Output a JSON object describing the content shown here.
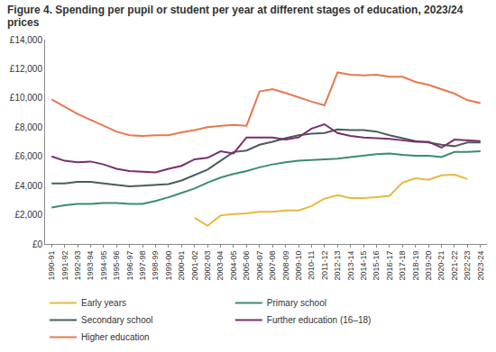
{
  "chart_data": {
    "type": "line",
    "title": "Figure 4. Spending per pupil or student per year at different stages of education, 2023/24 prices",
    "categories": [
      "1990-91",
      "1991-92",
      "1992-93",
      "1993-94",
      "1994-95",
      "1995-96",
      "1996-97",
      "1997-98",
      "1998-99",
      "1999-00",
      "2000-01",
      "2001-02",
      "2002-03",
      "2003-04",
      "2004-05",
      "2005-06",
      "2006-07",
      "2007-08",
      "2008-09",
      "2009-10",
      "2010-11",
      "2011-12",
      "2012-13",
      "2013-14",
      "2014-15",
      "2015-16",
      "2016-17",
      "2017-18",
      "2018-19",
      "2019-20",
      "2020-21",
      "2021-22",
      "2022-23",
      "2023-24"
    ],
    "series": [
      {
        "name": "Early years",
        "color": "#e8b940",
        "values": [
          null,
          null,
          null,
          null,
          null,
          null,
          null,
          null,
          null,
          null,
          null,
          1800,
          1250,
          1950,
          2050,
          2100,
          2200,
          2200,
          2300,
          2300,
          2600,
          3100,
          3350,
          3150,
          3150,
          3200,
          3300,
          4200,
          4500,
          4400,
          4700,
          4750,
          4450,
          null
        ]
      },
      {
        "name": "Primary school",
        "color": "#3b8c6e",
        "values": [
          2500,
          2650,
          2750,
          2750,
          2800,
          2800,
          2750,
          2750,
          2950,
          3200,
          3500,
          3800,
          4200,
          4550,
          4800,
          5000,
          5250,
          5450,
          5600,
          5700,
          5750,
          5800,
          5850,
          5950,
          6050,
          6150,
          6200,
          6100,
          6050,
          6050,
          5950,
          6300,
          6300,
          6350
        ]
      },
      {
        "name": "Secondary school",
        "color": "#4a5c5c",
        "values": [
          4150,
          4150,
          4250,
          4250,
          4150,
          4050,
          3950,
          4000,
          4050,
          4100,
          4350,
          4700,
          5100,
          5700,
          6300,
          6400,
          6800,
          7000,
          7250,
          7450,
          7550,
          7600,
          7850,
          7800,
          7800,
          7700,
          7450,
          7250,
          7050,
          6950,
          6800,
          6700,
          6950,
          6950
        ]
      },
      {
        "name": "Further education (16–18)",
        "color": "#7b2d6f",
        "values": [
          6000,
          5700,
          5600,
          5650,
          5450,
          5150,
          5000,
          4950,
          4900,
          5150,
          5350,
          5800,
          5900,
          6350,
          6200,
          7300,
          7300,
          7300,
          7150,
          7300,
          7900,
          8200,
          7600,
          7400,
          7300,
          7250,
          7200,
          7100,
          7000,
          7000,
          6600,
          7150,
          7100,
          7050
        ]
      },
      {
        "name": "Higher education",
        "color": "#e8784e",
        "values": [
          9900,
          9400,
          8900,
          8500,
          8100,
          7700,
          7450,
          7400,
          7450,
          7450,
          7650,
          7800,
          8000,
          8100,
          8150,
          8100,
          10450,
          10600,
          10350,
          10050,
          9750,
          9500,
          11750,
          11600,
          11550,
          11600,
          11450,
          11450,
          11100,
          10900,
          10600,
          10300,
          9850,
          9650
        ]
      }
    ],
    "ylim": [
      0,
      14000
    ],
    "yticks": [
      {
        "value": 0,
        "label": "£0"
      },
      {
        "value": 2000,
        "label": "£2,000"
      },
      {
        "value": 4000,
        "label": "£4,000"
      },
      {
        "value": 6000,
        "label": "£6,000"
      },
      {
        "value": 8000,
        "label": "£8,000"
      },
      {
        "value": 10000,
        "label": "£10,000"
      },
      {
        "value": 12000,
        "label": "£12,000"
      },
      {
        "value": 14000,
        "label": "£14,000"
      }
    ],
    "grid": false,
    "legend": "bottom"
  }
}
